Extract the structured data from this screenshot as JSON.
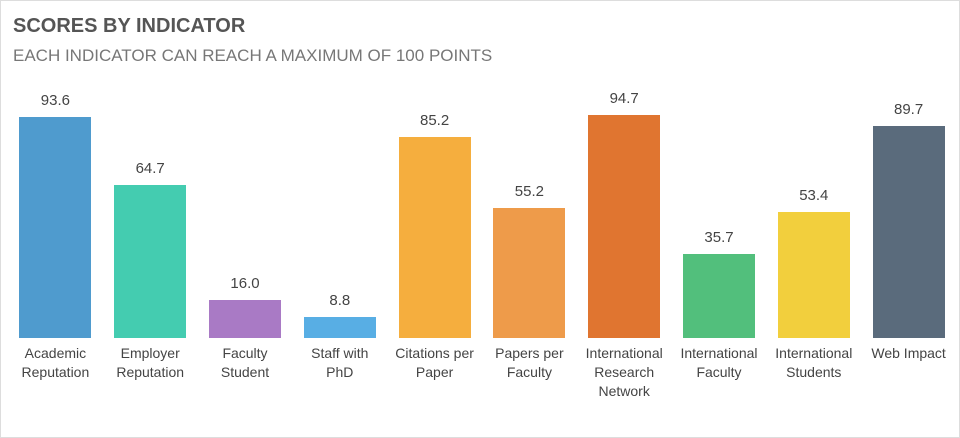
{
  "chart_data": {
    "type": "bar",
    "title": "SCORES BY INDICATOR",
    "subtitle": "EACH INDICATOR CAN REACH A MAXIMUM OF 100 POINTS",
    "categories": [
      "Academic Reputation",
      "Employer Reputation",
      "Faculty Student",
      "Staff with PhD",
      "Citations per Paper",
      "Papers per Faculty",
      "International Research Network",
      "International Faculty",
      "International Students",
      "Web Impact"
    ],
    "values": [
      93.6,
      64.7,
      16.0,
      8.8,
      85.2,
      55.2,
      94.7,
      35.7,
      53.4,
      89.7
    ],
    "value_labels": [
      "93.6",
      "64.7",
      "16.0",
      "8.8",
      "85.2",
      "55.2",
      "94.7",
      "35.7",
      "53.4",
      "89.7"
    ],
    "colors": [
      "#4f9bce",
      "#44ccb0",
      "#a97ac5",
      "#58aee4",
      "#f5ae3e",
      "#ee9b4a",
      "#e07530",
      "#52bf7c",
      "#f2cf3d",
      "#5a6b7c"
    ],
    "ylim": [
      0,
      100
    ]
  }
}
